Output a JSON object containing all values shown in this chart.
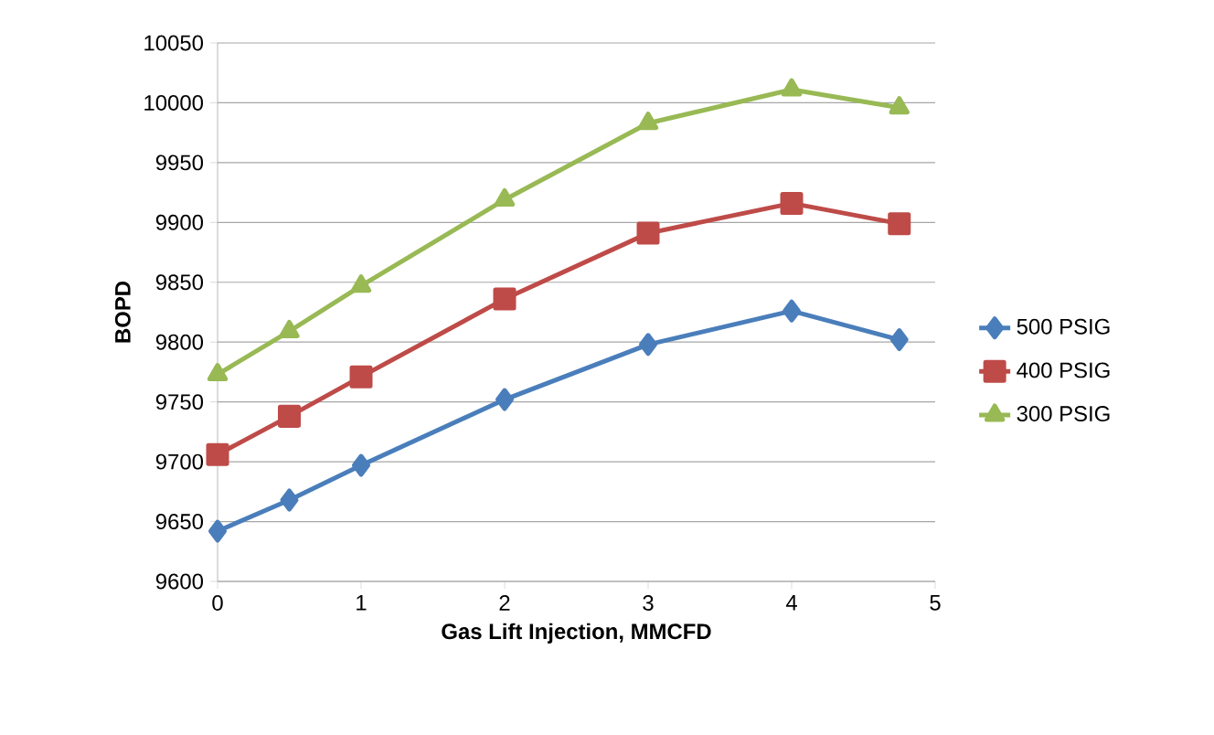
{
  "chart_data": {
    "type": "line",
    "xlabel": "Gas Lift Injection, MMCFD",
    "ylabel": "BOPD",
    "x": [
      0,
      0.5,
      1,
      2,
      3,
      4,
      4.75
    ],
    "series": [
      {
        "name": "500 PSIG",
        "color": "#4a7ebb",
        "marker": "diamond",
        "values": [
          9642,
          9668,
          9697,
          9752,
          9798,
          9826,
          9802
        ]
      },
      {
        "name": "400 PSIG",
        "color": "#be4b48",
        "marker": "square",
        "values": [
          9706,
          9738,
          9771,
          9836,
          9891,
          9916,
          9899
        ]
      },
      {
        "name": "300 PSIG",
        "color": "#98b954",
        "marker": "triangle",
        "values": [
          9773,
          9809,
          9847,
          9919,
          9983,
          10011,
          9996
        ]
      }
    ],
    "xlim": [
      0,
      5
    ],
    "xticks": [
      0,
      1,
      2,
      3,
      4,
      5
    ],
    "ylim": [
      9600,
      10050
    ],
    "yticks": [
      9600,
      9650,
      9700,
      9750,
      9800,
      9850,
      9900,
      9950,
      10000,
      10050
    ],
    "grid": "y",
    "legend": "right",
    "line_style": "solid"
  }
}
